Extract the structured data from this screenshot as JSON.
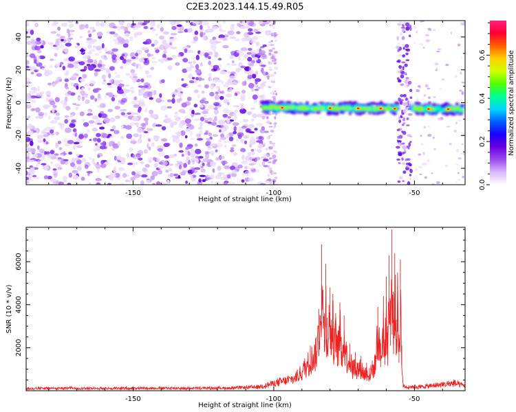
{
  "title": "C2E3.2023.144.15.49.R05",
  "chart_data": [
    {
      "type": "heatmap",
      "xlabel": "Height of straight line (km)",
      "ylabel": "Frequency (Hz)",
      "xlim": [
        -188,
        -32
      ],
      "ylim": [
        -50,
        50
      ],
      "x_ticks": [
        -150,
        -100,
        -50
      ],
      "x_tick_labels": [
        "-150",
        "-100",
        "-50"
      ],
      "y_ticks": [
        -40,
        -20,
        0,
        20,
        40
      ],
      "y_tick_labels": [
        "-40",
        "-20",
        "0",
        "20",
        "40"
      ],
      "noise_region_x": [
        -188,
        -102
      ],
      "noise_gap_x": [
        -55,
        -52
      ],
      "signal_band": {
        "x_range": [
          -104,
          -33
        ],
        "center_freq_at_start": -3,
        "center_freq_at_end": -4,
        "hot_spots_x": [
          -97,
          -80,
          -70,
          -62,
          -57,
          -45,
          -38
        ]
      },
      "colorbar": {
        "label": "Normalized spectral amplitude",
        "range": [
          0.0,
          0.76
        ],
        "ticks": [
          0.0,
          0.2,
          0.4,
          0.6
        ],
        "tick_labels": [
          "0.0",
          "0.2",
          "0.4",
          "0.6"
        ],
        "colors": [
          "#ffffff",
          "#d8b6f8",
          "#9c4af0",
          "#6800e0",
          "#1a00ff",
          "#0060ff",
          "#00d8ff",
          "#00ff90",
          "#50ff00",
          "#d0ff00",
          "#ffd000",
          "#ff6000",
          "#ff0030",
          "#ff2080"
        ]
      }
    },
    {
      "type": "line",
      "xlabel": "Height of straight line (km)",
      "ylabel": "SNR (10 * v/v)",
      "xlim": [
        -188,
        -32
      ],
      "ylim": [
        0,
        7600
      ],
      "x_ticks": [
        -150,
        -100,
        -50
      ],
      "x_tick_labels": [
        "-150",
        "-100",
        "-50"
      ],
      "y_ticks": [
        2000,
        4000,
        6000
      ],
      "y_tick_labels": [
        "2000",
        "4000",
        "6000"
      ],
      "series": [
        {
          "name": "SNR",
          "color": "#ee2222",
          "x": [
            -188,
            -175,
            -160,
            -145,
            -130,
            -115,
            -106,
            -102,
            -98,
            -95,
            -92,
            -89,
            -87,
            -85,
            -84,
            -83,
            -82,
            -81.5,
            -81,
            -80,
            -79.5,
            -79,
            -78.5,
            -78,
            -77,
            -76.5,
            -76,
            -75,
            -74,
            -73,
            -72,
            -71,
            -70,
            -69,
            -68,
            -67,
            -66,
            -65,
            -64,
            -63,
            -62,
            -61,
            -60.5,
            -60,
            -59.5,
            -59,
            -58.5,
            -58,
            -57.5,
            -57,
            -56.5,
            -56,
            -55.5,
            -55,
            -54.5,
            -54,
            -52,
            -50,
            -48,
            -46,
            -44,
            -42,
            -40,
            -38,
            -36,
            -34,
            -32
          ],
          "values": [
            150,
            170,
            160,
            180,
            170,
            190,
            250,
            400,
            600,
            700,
            900,
            1500,
            2100,
            2500,
            3800,
            6800,
            3600,
            5900,
            3400,
            4800,
            3300,
            4500,
            2900,
            3600,
            2800,
            4100,
            2500,
            3500,
            2100,
            2200,
            1400,
            1800,
            1300,
            1600,
            1100,
            1300,
            1050,
            1400,
            1700,
            3900,
            2200,
            4400,
            2400,
            5300,
            3000,
            6300,
            4200,
            7500,
            4300,
            6400,
            3300,
            5500,
            2600,
            6100,
            2100,
            300,
            250,
            280,
            260,
            300,
            330,
            380,
            420,
            460,
            520,
            400,
            330
          ]
        }
      ]
    }
  ]
}
